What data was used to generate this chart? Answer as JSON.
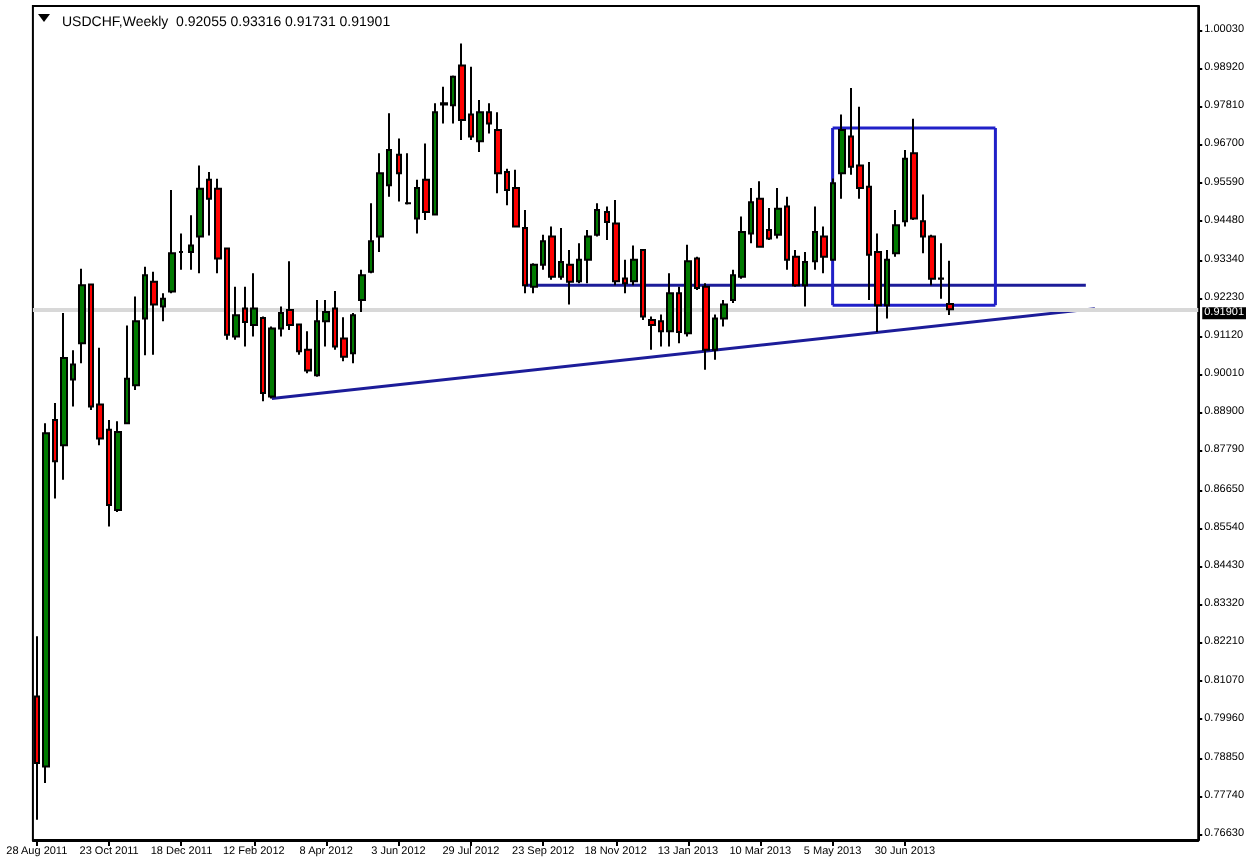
{
  "chart_data": {
    "type": "candlestick",
    "title": "USDCHF,Weekly  0.92055 0.93316 0.91731 0.91901",
    "x": [
      "2011-08-28",
      "2011-09-04",
      "2011-09-11",
      "2011-09-18",
      "2011-09-25",
      "2011-10-02",
      "2011-10-09",
      "2011-10-16",
      "2011-10-23",
      "2011-10-30",
      "2011-11-06",
      "2011-11-13",
      "2011-11-20",
      "2011-11-27",
      "2011-12-04",
      "2011-12-11",
      "2011-12-18",
      "2011-12-25",
      "2012-01-01",
      "2012-01-08",
      "2012-01-15",
      "2012-01-22",
      "2012-01-29",
      "2012-02-05",
      "2012-02-12",
      "2012-02-19",
      "2012-02-26",
      "2012-03-04",
      "2012-03-11",
      "2012-03-18",
      "2012-03-25",
      "2012-04-01",
      "2012-04-08",
      "2012-04-15",
      "2012-04-22",
      "2012-04-29",
      "2012-05-06",
      "2012-05-13",
      "2012-05-20",
      "2012-05-27",
      "2012-06-03",
      "2012-06-10",
      "2012-06-17",
      "2012-06-24",
      "2012-07-01",
      "2012-07-08",
      "2012-07-15",
      "2012-07-22",
      "2012-07-29",
      "2012-08-05",
      "2012-08-12",
      "2012-08-19",
      "2012-08-26",
      "2012-09-02",
      "2012-09-09",
      "2012-09-16",
      "2012-09-23",
      "2012-09-30",
      "2012-10-07",
      "2012-10-14",
      "2012-10-21",
      "2012-10-28",
      "2012-11-04",
      "2012-11-11",
      "2012-11-18",
      "2012-11-25",
      "2012-12-02",
      "2012-12-09",
      "2012-12-16",
      "2012-12-23",
      "2012-12-30",
      "2013-01-06",
      "2013-01-13",
      "2013-01-20",
      "2013-01-27",
      "2013-02-03",
      "2013-02-10",
      "2013-02-17",
      "2013-02-24",
      "2013-03-03",
      "2013-03-10",
      "2013-03-17",
      "2013-03-24",
      "2013-03-31",
      "2013-04-07",
      "2013-04-14",
      "2013-04-21",
      "2013-04-28",
      "2013-05-05",
      "2013-05-12",
      "2013-05-19",
      "2013-05-26",
      "2013-06-02",
      "2013-06-09",
      "2013-06-16",
      "2013-06-23",
      "2013-06-30",
      "2013-07-07",
      "2013-07-14",
      "2013-07-21",
      "2013-07-28",
      "2013-08-04"
    ],
    "ohlc": [
      [
        0.8063,
        0.8238,
        0.7704,
        0.7869
      ],
      [
        0.7859,
        0.8858,
        0.7811,
        0.8829
      ],
      [
        0.8868,
        0.8917,
        0.8639,
        0.8748
      ],
      [
        0.8794,
        0.9179,
        0.8694,
        0.9048
      ],
      [
        0.8986,
        0.9071,
        0.8907,
        0.9029
      ],
      [
        0.9091,
        0.9308,
        0.9033,
        0.926
      ],
      [
        0.9262,
        0.9262,
        0.8897,
        0.8907
      ],
      [
        0.8913,
        0.9078,
        0.8794,
        0.8814
      ],
      [
        0.8839,
        0.8868,
        0.8558,
        0.862
      ],
      [
        0.8606,
        0.8864,
        0.86,
        0.8833
      ],
      [
        0.8858,
        0.9143,
        0.8858,
        0.8988
      ],
      [
        0.8969,
        0.9227,
        0.8955,
        0.9155
      ],
      [
        0.9163,
        0.9314,
        0.9056,
        0.9289
      ],
      [
        0.927,
        0.9299,
        0.9058,
        0.9204
      ],
      [
        0.9198,
        0.9237,
        0.9155,
        0.9221
      ],
      [
        0.9242,
        0.9537,
        0.9237,
        0.9353
      ],
      [
        0.9357,
        0.9411,
        0.9305,
        0.9357
      ],
      [
        0.9357,
        0.9464,
        0.9305,
        0.9376
      ],
      [
        0.9402,
        0.9609,
        0.9295,
        0.9541
      ],
      [
        0.9567,
        0.959,
        0.9405,
        0.9512
      ],
      [
        0.9541,
        0.957,
        0.9295,
        0.9338
      ],
      [
        0.9367,
        0.9367,
        0.9101,
        0.9116
      ],
      [
        0.9111,
        0.9256,
        0.9101,
        0.9173
      ],
      [
        0.9192,
        0.9256,
        0.9082,
        0.9153
      ],
      [
        0.9144,
        0.9295,
        0.9111,
        0.9192
      ],
      [
        0.9165,
        0.9169,
        0.8922,
        0.8946
      ],
      [
        0.8936,
        0.914,
        0.893,
        0.9134
      ],
      [
        0.9134,
        0.9198,
        0.9111,
        0.9179
      ],
      [
        0.9188,
        0.933,
        0.913,
        0.9144
      ],
      [
        0.9146,
        0.9149,
        0.9058,
        0.9068
      ],
      [
        0.9072,
        0.9126,
        0.9004,
        0.9012
      ],
      [
        0.8998,
        0.9217,
        0.8994,
        0.9155
      ],
      [
        0.9155,
        0.9217,
        0.9082,
        0.9182
      ],
      [
        0.9192,
        0.9243,
        0.9072,
        0.9082
      ],
      [
        0.9105,
        0.9167,
        0.9039,
        0.9052
      ],
      [
        0.9062,
        0.9179,
        0.9033,
        0.9173
      ],
      [
        0.9217,
        0.9305,
        0.9182,
        0.9289
      ],
      [
        0.9299,
        0.9499,
        0.9295,
        0.9388
      ],
      [
        0.9402,
        0.9644,
        0.9357,
        0.9586
      ],
      [
        0.9551,
        0.9761,
        0.9518,
        0.9654
      ],
      [
        0.964,
        0.9687,
        0.9504,
        0.9586
      ],
      [
        0.9499,
        0.9644,
        0.9495,
        0.9499
      ],
      [
        0.9454,
        0.9567,
        0.9411,
        0.9543
      ],
      [
        0.9567,
        0.9673,
        0.945,
        0.9473
      ],
      [
        0.9466,
        0.979,
        0.9466,
        0.9764
      ],
      [
        0.9786,
        0.9838,
        0.9731,
        0.979
      ],
      [
        0.9784,
        0.9871,
        0.9731,
        0.9867
      ],
      [
        0.99,
        0.9964,
        0.9683,
        0.9741
      ],
      [
        0.9757,
        0.9896,
        0.9683,
        0.9693
      ],
      [
        0.9679,
        0.9799,
        0.9648,
        0.9764
      ],
      [
        0.9764,
        0.979,
        0.9702,
        0.9731
      ],
      [
        0.9712,
        0.9764,
        0.9528,
        0.9586
      ],
      [
        0.959,
        0.9599,
        0.9493,
        0.9537
      ],
      [
        0.9543,
        0.9596,
        0.9431,
        0.9431
      ],
      [
        0.9427,
        0.9479,
        0.9237,
        0.926
      ],
      [
        0.9256,
        0.9324,
        0.9237,
        0.932
      ],
      [
        0.932,
        0.9407,
        0.9305,
        0.9388
      ],
      [
        0.9402,
        0.9431,
        0.9276,
        0.9285
      ],
      [
        0.9285,
        0.9427,
        0.9276,
        0.9328
      ],
      [
        0.932,
        0.9363,
        0.9204,
        0.927
      ],
      [
        0.9272,
        0.9382,
        0.9266,
        0.9334
      ],
      [
        0.9334,
        0.9421,
        0.9266,
        0.9402
      ],
      [
        0.9407,
        0.9499,
        0.9402,
        0.9479
      ],
      [
        0.9473,
        0.9489,
        0.9392,
        0.9444
      ],
      [
        0.944,
        0.9508,
        0.926,
        0.9272
      ],
      [
        0.928,
        0.9334,
        0.9237,
        0.9266
      ],
      [
        0.9272,
        0.9376,
        0.926,
        0.9334
      ],
      [
        0.9363,
        0.9363,
        0.9159,
        0.9169
      ],
      [
        0.9159,
        0.9169,
        0.9072,
        0.9144
      ],
      [
        0.9155,
        0.9175,
        0.9082,
        0.9126
      ],
      [
        0.9126,
        0.9295,
        0.9082,
        0.9237
      ],
      [
        0.9237,
        0.9256,
        0.9091,
        0.9124
      ],
      [
        0.912,
        0.9378,
        0.9111,
        0.933
      ],
      [
        0.9338,
        0.9343,
        0.9246,
        0.9252
      ],
      [
        0.9256,
        0.9266,
        0.9014,
        0.9072
      ],
      [
        0.9072,
        0.9175,
        0.9043,
        0.9163
      ],
      [
        0.9163,
        0.9217,
        0.914,
        0.9204
      ],
      [
        0.9217,
        0.9305,
        0.9208,
        0.9289
      ],
      [
        0.9285,
        0.946,
        0.9279,
        0.9415
      ],
      [
        0.9411,
        0.9543,
        0.9382,
        0.9502
      ],
      [
        0.9512,
        0.9563,
        0.9369,
        0.9372
      ],
      [
        0.9421,
        0.9485,
        0.9392,
        0.9396
      ],
      [
        0.9407,
        0.9543,
        0.9396,
        0.9483
      ],
      [
        0.9489,
        0.9518,
        0.9305,
        0.9334
      ],
      [
        0.9343,
        0.9363,
        0.9256,
        0.926
      ],
      [
        0.926,
        0.9357,
        0.9198,
        0.9328
      ],
      [
        0.933,
        0.9489,
        0.9305,
        0.9415
      ],
      [
        0.9402,
        0.9431,
        0.9295,
        0.9343
      ],
      [
        0.9334,
        0.9571,
        0.9334,
        0.9557
      ],
      [
        0.9586,
        0.9757,
        0.9512,
        0.9712
      ],
      [
        0.9693,
        0.9834,
        0.9582,
        0.9605
      ],
      [
        0.9609,
        0.978,
        0.9512,
        0.9543
      ],
      [
        0.9547,
        0.9619,
        0.9217,
        0.9349
      ],
      [
        0.9357,
        0.9411,
        0.9124,
        0.9202
      ],
      [
        0.9202,
        0.9363,
        0.9163,
        0.9334
      ],
      [
        0.9353,
        0.9479,
        0.9343,
        0.9435
      ],
      [
        0.9446,
        0.9654,
        0.9431,
        0.9628
      ],
      [
        0.9644,
        0.9745,
        0.945,
        0.9454
      ],
      [
        0.9446,
        0.9524,
        0.9353,
        0.9402
      ],
      [
        0.9402,
        0.9407,
        0.926,
        0.9279
      ],
      [
        0.928,
        0.9382,
        0.9221,
        0.9279
      ],
      [
        0.92055,
        0.93316,
        0.91731,
        0.91901
      ]
    ],
    "series": [
      {
        "type": "line",
        "color": "#1c1c99",
        "x": [
          "2012-02-26",
          "2013-11-24"
        ],
        "values": [
          0.893,
          0.9192
        ]
      },
      {
        "type": "line",
        "color": "#1c1c99",
        "x": [
          "2012-09-09",
          "2013-11-17"
        ],
        "values": [
          0.926,
          0.926
        ]
      },
      {
        "type": "line",
        "color": "#2020c8",
        "x": [
          "2013-05-05",
          "2013-09-08"
        ],
        "values": [
          0.9718,
          0.9718
        ]
      },
      {
        "type": "line",
        "color": "#2020c8",
        "x": [
          "2013-05-05",
          "2013-09-08"
        ],
        "values": [
          0.9202,
          0.9202
        ]
      },
      {
        "type": "line",
        "color": "#2020c8",
        "x": [
          "2013-05-05",
          "2013-05-05"
        ],
        "values": [
          0.9718,
          0.9202
        ]
      },
      {
        "type": "line",
        "color": "#2020c8",
        "x": [
          "2013-09-08",
          "2013-09-08"
        ],
        "values": [
          0.9718,
          0.9202
        ]
      }
    ],
    "xlim": [
      "2011-08-25",
      "2014-02-12"
    ],
    "xticks": [
      {
        "value": "2011-08-28",
        "label": "28 Aug 2011"
      },
      {
        "value": "2011-10-23",
        "label": "23 Oct 2011"
      },
      {
        "value": "2011-12-18",
        "label": "18 Dec 2011"
      },
      {
        "value": "2012-02-12",
        "label": "12 Feb 2012"
      },
      {
        "value": "2012-04-08",
        "label": "8 Apr 2012"
      },
      {
        "value": "2012-06-03",
        "label": "3 Jun 2012"
      },
      {
        "value": "2012-07-29",
        "label": "29 Jul 2012"
      },
      {
        "value": "2012-09-23",
        "label": "23 Sep 2012"
      },
      {
        "value": "2012-11-18",
        "label": "18 Nov 2012"
      },
      {
        "value": "2013-01-13",
        "label": "13 Jan 2013"
      },
      {
        "value": "2013-03-10",
        "label": "10 Mar 2013"
      },
      {
        "value": "2013-05-05",
        "label": "5 May 2013"
      },
      {
        "value": "2013-06-30",
        "label": "30 Jun 2013"
      }
    ],
    "ylim": [
      0.7645,
      1.0073
    ],
    "yticks": [
      {
        "value": 1.0003,
        "label": "1.00030"
      },
      {
        "value": 0.9892,
        "label": "0.98920"
      },
      {
        "value": 0.9781,
        "label": "0.97810"
      },
      {
        "value": 0.967,
        "label": "0.96700"
      },
      {
        "value": 0.9559,
        "label": "0.95590"
      },
      {
        "value": 0.9448,
        "label": "0.94480"
      },
      {
        "value": 0.9334,
        "label": "0.93340"
      },
      {
        "value": 0.9223,
        "label": "0.92230"
      },
      {
        "value": 0.9112,
        "label": "0.91120"
      },
      {
        "value": 0.9001,
        "label": "0.90010"
      },
      {
        "value": 0.889,
        "label": "0.88900"
      },
      {
        "value": 0.8779,
        "label": "0.87790"
      },
      {
        "value": 0.8665,
        "label": "0.86650"
      },
      {
        "value": 0.8554,
        "label": "0.85540"
      },
      {
        "value": 0.8443,
        "label": "0.84430"
      },
      {
        "value": 0.8332,
        "label": "0.83320"
      },
      {
        "value": 0.8221,
        "label": "0.82210"
      },
      {
        "value": 0.8107,
        "label": "0.81070"
      },
      {
        "value": 0.7996,
        "label": "0.79960"
      },
      {
        "value": 0.7885,
        "label": "0.78850"
      },
      {
        "value": 0.7774,
        "label": "0.77740"
      },
      {
        "value": 0.7663,
        "label": "0.76630"
      }
    ],
    "ref_lines": [
      {
        "axis": "y",
        "value": 0.91901,
        "label": "0.91901",
        "color": "#d8d8d8"
      }
    ],
    "grid": false
  }
}
